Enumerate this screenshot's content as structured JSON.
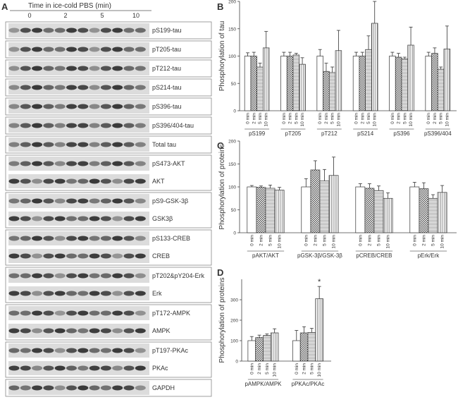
{
  "panel_a": {
    "panel": "A",
    "header": "Time in ice-cold PBS (min)",
    "timepoints": [
      "0",
      "2",
      "5",
      "10"
    ],
    "groups": [
      [
        "pS199-tau"
      ],
      [
        "pT205-tau"
      ],
      [
        "pT212-tau"
      ],
      [
        "pS214-tau"
      ],
      [
        "pS396-tau"
      ],
      [
        "pS396/404-tau"
      ],
      [
        "Total tau"
      ],
      [
        "pS473-AKT",
        "AKT"
      ],
      [
        "pS9-GSK-3β",
        "GSK3β"
      ],
      [
        "pS133-CREB",
        "CREB"
      ],
      [
        "pT202&pY204-Erk",
        "Erk"
      ],
      [
        "pT172-AMPK",
        "AMPK"
      ],
      [
        "pT197-PKAc",
        "PKAc"
      ],
      [
        "GAPDH"
      ]
    ]
  },
  "chart_data": [
    {
      "type": "bar",
      "panel": "B",
      "y_label": "Phosphorylation of tau",
      "categories": [
        "pS199",
        "pT205",
        "pT212",
        "pS214",
        "pS396",
        "pS396/404"
      ],
      "series": [
        {
          "name": "0 min",
          "pattern": "none",
          "values": [
            100,
            100,
            100,
            100,
            100,
            100
          ],
          "errors": [
            6,
            7,
            12,
            7,
            7,
            7
          ]
        },
        {
          "name": "2 min",
          "pattern": "checker",
          "values": [
            100,
            100,
            72,
            100,
            98,
            105
          ],
          "errors": [
            7,
            7,
            15,
            7,
            7,
            10
          ]
        },
        {
          "name": "5 min",
          "pattern": "hlines",
          "values": [
            80,
            102,
            70,
            112,
            95,
            76
          ],
          "errors": [
            7,
            3,
            10,
            25,
            3,
            4
          ]
        },
        {
          "name": "10 min",
          "pattern": "vlines",
          "values": [
            115,
            85,
            110,
            160,
            120,
            113
          ],
          "errors": [
            30,
            12,
            37,
            40,
            33,
            42
          ]
        }
      ],
      "ylim": [
        0,
        200
      ],
      "yticks": [
        0,
        50,
        100,
        150,
        200
      ]
    },
    {
      "type": "bar",
      "panel": "C",
      "y_label": "Phosphorylation of proteins",
      "categories": [
        "pAKT/AKT",
        "pGSK-3β/GSK-3β",
        "pCREB/CREB",
        "pErk/Erk"
      ],
      "series": [
        {
          "name": "0 min",
          "pattern": "none",
          "values": [
            100,
            100,
            100,
            100
          ],
          "errors": [
            3,
            18,
            7,
            10
          ]
        },
        {
          "name": "2 min",
          "pattern": "checker",
          "values": [
            99,
            137,
            97,
            96
          ],
          "errors": [
            3,
            20,
            10,
            13
          ]
        },
        {
          "name": "5 min",
          "pattern": "hlines",
          "values": [
            97,
            113,
            92,
            75
          ],
          "errors": [
            7,
            25,
            10,
            8
          ]
        },
        {
          "name": "10 min",
          "pattern": "vlines",
          "values": [
            93,
            125,
            75,
            88
          ],
          "errors": [
            6,
            40,
            12,
            15
          ]
        }
      ],
      "ylim": [
        0,
        200
      ],
      "yticks": [
        0,
        50,
        100,
        150,
        200
      ]
    },
    {
      "type": "bar",
      "panel": "D",
      "y_label": "Phosphorylation of proteins",
      "categories": [
        "pAMPK/AMPK",
        "pPKAc/PKAc"
      ],
      "series": [
        {
          "name": "0 min",
          "pattern": "none",
          "values": [
            100,
            100
          ],
          "errors": [
            20,
            50
          ]
        },
        {
          "name": "2 min",
          "pattern": "checker",
          "values": [
            115,
            138
          ],
          "errors": [
            12,
            30
          ]
        },
        {
          "name": "5 min",
          "pattern": "hlines",
          "values": [
            125,
            140
          ],
          "errors": [
            8,
            20
          ]
        },
        {
          "name": "10 min",
          "pattern": "vlines",
          "values": [
            138,
            305
          ],
          "errors": [
            20,
            60
          ]
        }
      ],
      "ylim": [
        0,
        400
      ],
      "yticks": [
        0,
        100,
        200,
        300
      ],
      "annotations": [
        {
          "text": "*",
          "category": "pPKAc/PKAc",
          "series": "10 min"
        }
      ]
    }
  ]
}
